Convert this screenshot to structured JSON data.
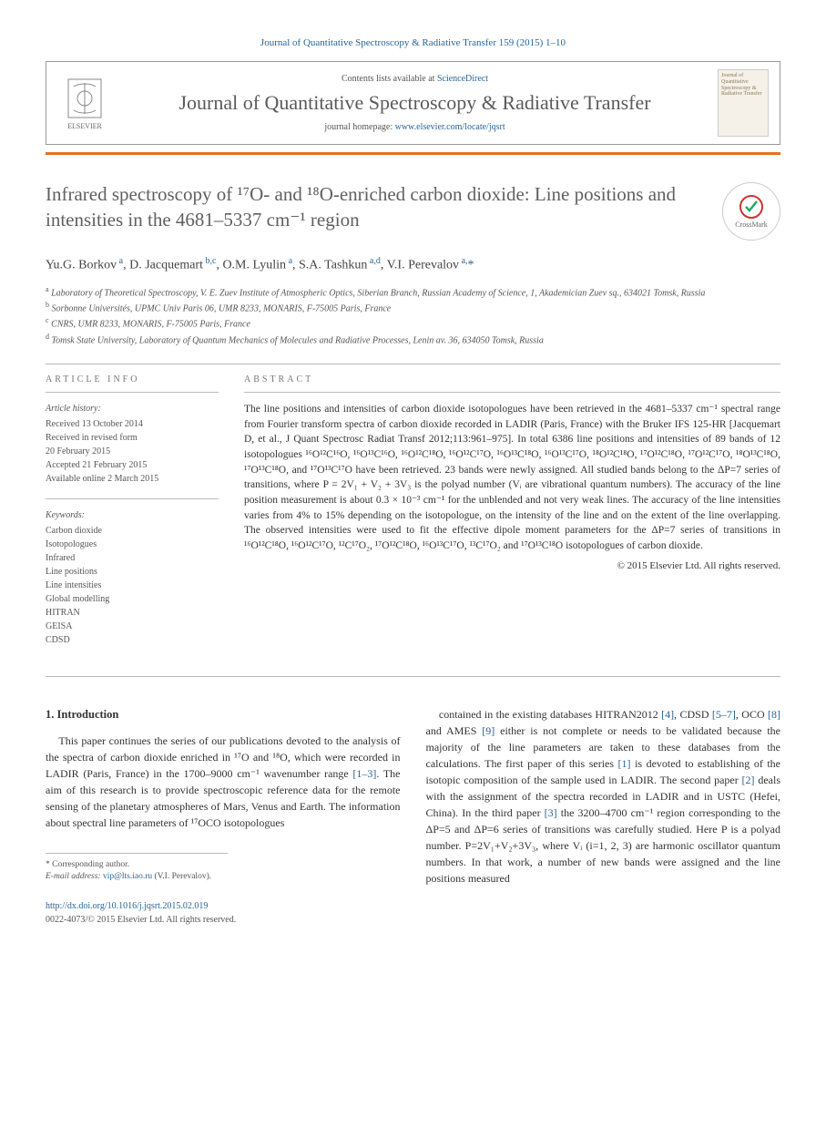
{
  "topLink": "Journal of Quantitative Spectroscopy & Radiative Transfer 159 (2015) 1–10",
  "header": {
    "contentsPrefix": "Contents lists available at ",
    "contentsLink": "ScienceDirect",
    "journalName": "Journal of Quantitative Spectroscopy & Radiative Transfer",
    "homepagePrefix": "journal homepage: ",
    "homepageLink": "www.elsevier.com/locate/jqsrt",
    "publisherLabel": "ELSEVIER",
    "coverText": "Journal of Quantitative Spectroscopy & Radiative Transfer"
  },
  "colors": {
    "accent": "#e37222",
    "link": "#2a6496",
    "headingGrey": "#606060"
  },
  "title": "Infrared spectroscopy of ¹⁷O- and ¹⁸O-enriched carbon dioxide: Line positions and intensities in the 4681–5337 cm⁻¹ region",
  "crossmarkLabel": "CrossMark",
  "authors": [
    {
      "name": "Yu.G. Borkov",
      "aff": "a"
    },
    {
      "name": "D. Jacquemart",
      "aff": "b,c"
    },
    {
      "name": "O.M. Lyulin",
      "aff": "a"
    },
    {
      "name": "S.A. Tashkun",
      "aff": "a,d"
    },
    {
      "name": "V.I. Perevalov",
      "aff": "a,*"
    }
  ],
  "affiliations": [
    {
      "lbl": "a",
      "text": "Laboratory of Theoretical Spectroscopy, V. E. Zuev Institute of Atmospheric Optics, Siberian Branch, Russian Academy of Science, 1, Akademician Zuev sq., 634021 Tomsk, Russia"
    },
    {
      "lbl": "b",
      "text": "Sorbonne Universités, UPMC Univ Paris 06, UMR 8233, MONARIS, F-75005 Paris, France"
    },
    {
      "lbl": "c",
      "text": "CNRS, UMR 8233, MONARIS, F-75005 Paris, France"
    },
    {
      "lbl": "d",
      "text": "Tomsk State University, Laboratory of Quantum Mechanics of Molecules and Radiative Processes, Lenin av. 36, 634050 Tomsk, Russia"
    }
  ],
  "articleInfo": {
    "heading": "ARTICLE INFO",
    "historyHead": "Article history:",
    "history": [
      "Received 13 October 2014",
      "Received in revised form",
      "20 February 2015",
      "Accepted 21 February 2015",
      "Available online 2 March 2015"
    ],
    "keywordsHead": "Keywords:",
    "keywords": [
      "Carbon dioxide",
      "Isotopologues",
      "Infrared",
      "Line positions",
      "Line intensities",
      "Global modelling",
      "HITRAN",
      "GEISA",
      "CDSD"
    ]
  },
  "abstract": {
    "heading": "ABSTRACT",
    "body": "The line positions and intensities of carbon dioxide isotopologues have been retrieved in the 4681–5337 cm⁻¹ spectral range from Fourier transform spectra of carbon dioxide recorded in LADIR (Paris, France) with the Bruker IFS 125-HR [Jacquemart D, et al., J Quant Spectrosc Radiat Transf 2012;113:961–975]. In total 6386 line positions and intensities of 89 bands of 12 isotopologues ¹⁶O¹²C¹⁶O, ¹⁶O¹³C¹⁶O, ¹⁶O¹²C¹⁸O, ¹⁶O¹²C¹⁷O, ¹⁶O¹³C¹⁸O, ¹⁶O¹³C¹⁷O, ¹⁸O¹²C¹⁸O, ¹⁷O¹²C¹⁸O, ¹⁷O¹²C¹⁷O, ¹⁸O¹³C¹⁸O, ¹⁷O¹³C¹⁸O, and ¹⁷O¹³C¹⁷O have been retrieved. 23 bands were newly assigned. All studied bands belong to the ΔP=7 series of transitions, where P = 2V₁ + V₂ + 3V₃ is the polyad number (Vᵢ are vibrational quantum numbers). The accuracy of the line position measurement is about 0.3 × 10⁻³ cm⁻¹ for the unblended and not very weak lines. The accuracy of the line intensities varies from 4% to 15% depending on the isotopologue, on the intensity of the line and on the extent of the line overlapping. The observed intensities were used to fit the effective dipole moment parameters for the ΔP=7 series of transitions in ¹⁶O¹²C¹⁸O, ¹⁶O¹²C¹⁷O, ¹²C¹⁷O₂, ¹⁷O¹²C¹⁸O, ¹⁶O¹³C¹⁷O, ¹³C¹⁷O₂ and ¹⁷O¹³C¹⁸O isotopologues of carbon dioxide.",
    "copyright": "© 2015 Elsevier Ltd. All rights reserved."
  },
  "intro": {
    "heading": "1. Introduction",
    "col1": "This paper continues the series of our publications devoted to the analysis of the spectra of carbon dioxide enriched in ¹⁷O and ¹⁸O, which were recorded in LADIR (Paris, France) in the 1700–9000 cm⁻¹ wavenumber range [1–3]. The aim of this research is to provide spectroscopic reference data for the remote sensing of the planetary atmospheres of Mars, Venus and Earth. The information about spectral line parameters of ¹⁷OCO isotopologues",
    "col2": "contained in the existing databases HITRAN2012 [4], CDSD [5–7], OCO [8] and AMES [9] either is not complete or needs to be validated because the majority of the line parameters are taken to these databases from the calculations. The first paper of this series [1] is devoted to establishing of the isotopic composition of the sample used in LADIR. The second paper [2] deals with the assignment of the spectra recorded in LADIR and in USTC (Hefei, China). In the third paper [3] the 3200–4700 cm⁻¹ region corresponding to the ΔP=5 and ΔP=6 series of transitions was carefully studied. Here P is a polyad number. P=2V₁+V₂+3V₃, where Vᵢ (i=1, 2, 3) are harmonic oscillator quantum numbers. In that work, a number of new bands were assigned and the line positions measured"
  },
  "footnote": {
    "corrLabel": "* Corresponding author.",
    "emailLabel": "E-mail address: ",
    "email": "vip@lts.iao.ru",
    "emailSuffix": " (V.I. Perevalov)."
  },
  "doi": "http://dx.doi.org/10.1016/j.jqsrt.2015.02.019",
  "issn": "0022-4073/© 2015 Elsevier Ltd. All rights reserved."
}
